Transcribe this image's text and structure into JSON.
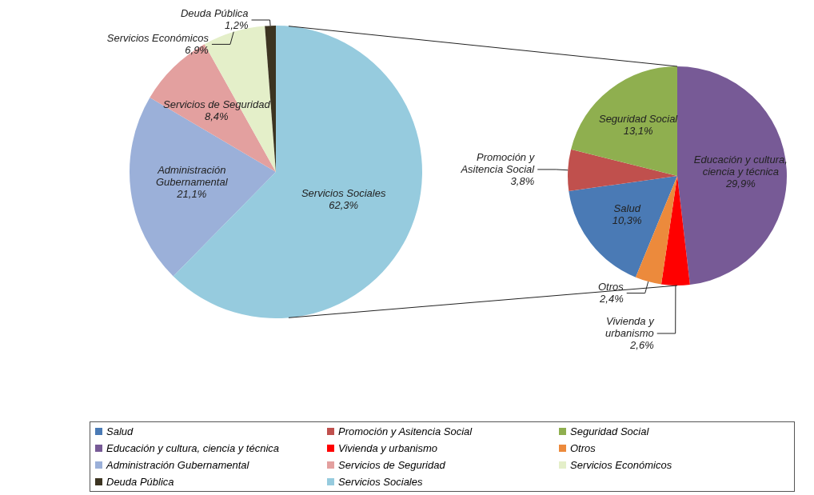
{
  "chart_data": [
    {
      "type": "pie",
      "categories": [
        "Administración Gubernamental",
        "Servicios de Seguridad",
        "Servicios Económicos",
        "Deuda Pública",
        "Servicios Sociales"
      ],
      "values": [
        21.1,
        8.4,
        6.9,
        1.2,
        62.3
      ],
      "colors": [
        "#9bb0d9",
        "#e3a09f",
        "#e4efc9",
        "#3c3421",
        "#96cbde"
      ],
      "value_labels": [
        "21,1%",
        "8,4%",
        "6,9%",
        "1,2%",
        "62,3%"
      ],
      "legend": "bottom"
    },
    {
      "type": "pie",
      "categories": [
        "Salud",
        "Promoción y Asitencia Social",
        "Seguridad Social",
        "Educación y cultura, ciencia y técnica",
        "Vivienda y urbanismo",
        "Otros"
      ],
      "values": [
        10.3,
        3.8,
        13.1,
        29.9,
        2.6,
        2.4
      ],
      "colors": [
        "#4a7ab5",
        "#c0504d",
        "#8faf4f",
        "#775a96",
        "#ff0000",
        "#ec8a3c"
      ],
      "value_labels": [
        "10,3%",
        "3,8%",
        "13,1%",
        "29,9%",
        "2,6%",
        "2,4%"
      ],
      "legend": "bottom"
    }
  ]
}
